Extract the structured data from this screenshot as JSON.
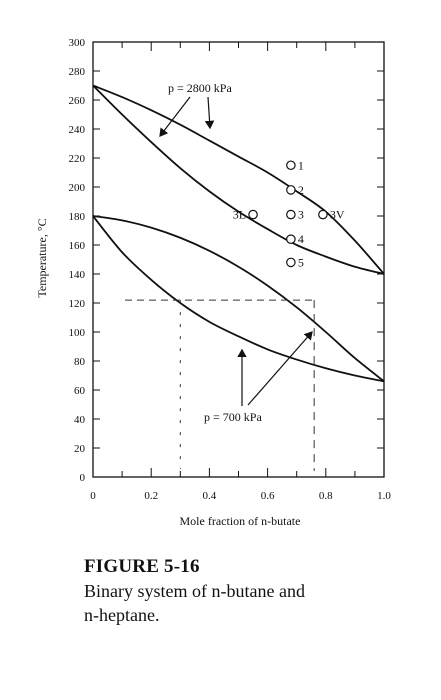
{
  "chart_data": {
    "type": "line",
    "xlabel": "Mole fraction of n-butate",
    "ylabel": "Temperature, °C",
    "xlim": [
      0,
      1.0
    ],
    "ylim": [
      0,
      300
    ],
    "x_ticks": [
      "0",
      "0.2",
      "0.4",
      "0.6",
      "0.8",
      "1.0"
    ],
    "y_ticks": [
      "0",
      "20",
      "40",
      "60",
      "80",
      "100",
      "120",
      "140",
      "160",
      "180",
      "200",
      "220",
      "240",
      "260",
      "280",
      "300"
    ],
    "series": [
      {
        "pressure": "2800 kPa",
        "curve": "dew",
        "x": [
          0,
          0.1,
          0.2,
          0.3,
          0.4,
          0.5,
          0.6,
          0.7,
          0.8,
          0.9,
          1.0
        ],
        "y": [
          270,
          262,
          253,
          243,
          232,
          221,
          210,
          197,
          183,
          163,
          140
        ]
      },
      {
        "pressure": "2800 kPa",
        "curve": "bubble",
        "x": [
          0,
          0.1,
          0.2,
          0.3,
          0.4,
          0.5,
          0.6,
          0.7,
          0.8,
          0.9,
          1.0
        ],
        "y": [
          270,
          250,
          231,
          213,
          197,
          183,
          171,
          160,
          152,
          145,
          140
        ]
      },
      {
        "pressure": "700 kPa",
        "curve": "dew",
        "x": [
          0,
          0.1,
          0.2,
          0.3,
          0.4,
          0.5,
          0.6,
          0.7,
          0.8,
          0.9,
          1.0
        ],
        "y": [
          180,
          177,
          172,
          165,
          156,
          145,
          132,
          117,
          100,
          82,
          66
        ]
      },
      {
        "pressure": "700 kPa",
        "curve": "bubble",
        "x": [
          0,
          0.1,
          0.2,
          0.3,
          0.4,
          0.5,
          0.6,
          0.7,
          0.8,
          0.9,
          1.0
        ],
        "y": [
          180,
          155,
          136,
          120,
          107,
          97,
          88,
          81,
          75,
          70,
          66
        ]
      }
    ],
    "points": [
      {
        "label": "1",
        "x": 0.68,
        "y": 215
      },
      {
        "label": "2",
        "x": 0.68,
        "y": 198
      },
      {
        "label": "3",
        "x": 0.68,
        "y": 181
      },
      {
        "label": "3L",
        "x": 0.55,
        "y": 181
      },
      {
        "label": "3V",
        "x": 0.79,
        "y": 181
      },
      {
        "label": "4",
        "x": 0.68,
        "y": 164
      },
      {
        "label": "5",
        "x": 0.68,
        "y": 148
      }
    ],
    "guide_lines": {
      "y": 122,
      "x_left": 0.3,
      "x_right": 0.76
    },
    "annotations": {
      "high": "p = 2800 kPa",
      "low": "p = 700 kPa"
    }
  },
  "caption": {
    "title": "FIGURE 5-16",
    "text_line1": "Binary system of n-butane and",
    "text_line2": "n-heptane."
  }
}
